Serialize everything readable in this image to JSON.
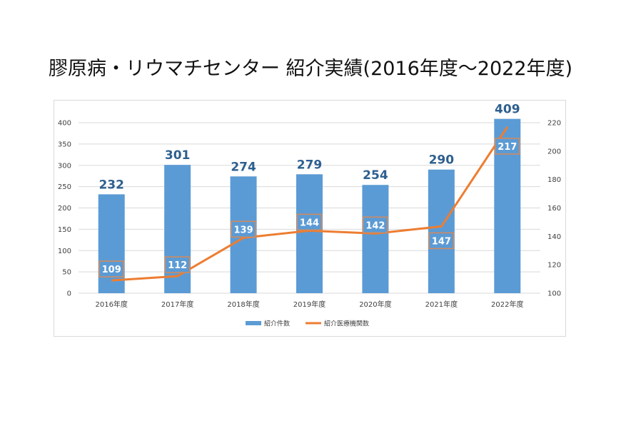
{
  "page": {
    "title": "膠原病・リウマチセンター 紹介実績(2016年度～2022年度)"
  },
  "chart_data": {
    "type": "bar",
    "categories": [
      "2016年度",
      "2017年度",
      "2018年度",
      "2019年度",
      "2020年度",
      "2021年度",
      "2022年度"
    ],
    "series": [
      {
        "name": "紹介件数",
        "type": "bar",
        "axis": "left",
        "color": "#5b9bd5",
        "values": [
          232,
          301,
          274,
          279,
          254,
          290,
          409
        ]
      },
      {
        "name": "紹介医療機関数",
        "type": "line",
        "axis": "right",
        "color": "#ed7d31",
        "values": [
          109,
          112,
          139,
          144,
          142,
          147,
          217
        ]
      }
    ],
    "y_left": {
      "min": 0,
      "max": 400,
      "step": 50,
      "ticks": [
        "0",
        "50",
        "100",
        "150",
        "200",
        "250",
        "300",
        "350",
        "400"
      ]
    },
    "y_right": {
      "min": 100,
      "max": 220,
      "step": 20,
      "ticks": [
        "100",
        "120",
        "140",
        "160",
        "180",
        "200",
        "220"
      ]
    },
    "grid": true,
    "legend_position": "bottom"
  }
}
